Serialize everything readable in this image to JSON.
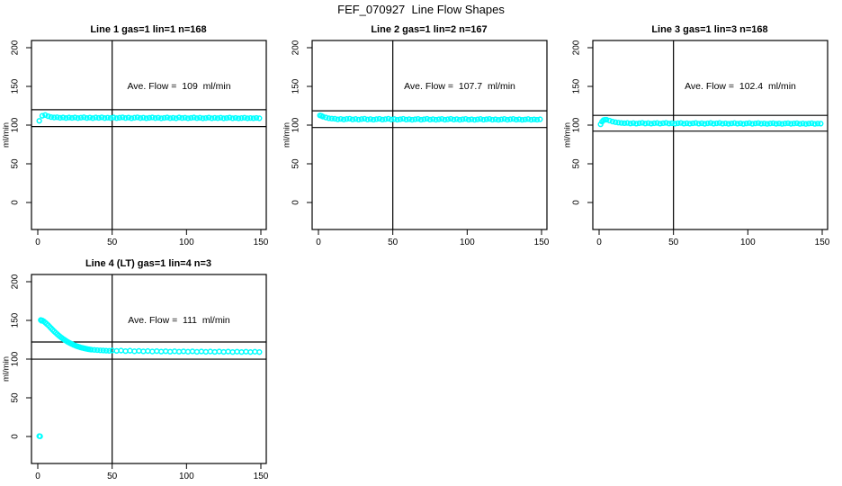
{
  "figure_title": "FEF_070927  Line Flow Shapes",
  "colors": {
    "marker": "#00FFFF",
    "axis": "#000000",
    "background": "#FFFFFF"
  },
  "chart_data": [
    {
      "type": "scatter",
      "title": "Line 1 gas=1 lin=1 n=168",
      "annotation": "Ave. Flow =  109  ml/min",
      "ave_flow": 109,
      "n": 168,
      "ylabel": "ml/min",
      "xticks": [
        0,
        50,
        100,
        150
      ],
      "yticks": [
        0,
        50,
        100,
        150,
        200
      ],
      "xlim": [
        0,
        155
      ],
      "ylim": [
        -35,
        210
      ],
      "vline_x": 50,
      "hlines": [
        119.9,
        98.1
      ],
      "legend": "none",
      "grid": false,
      "points": [
        [
          1,
          105.5
        ],
        [
          3,
          112
        ],
        [
          5,
          113
        ],
        [
          7,
          111.5
        ],
        [
          9,
          110.3
        ],
        [
          11,
          109.8
        ],
        [
          13,
          110.2
        ],
        [
          15,
          109.4
        ],
        [
          17,
          109.9
        ],
        [
          19,
          109.2
        ],
        [
          21,
          109.8
        ],
        [
          23,
          109.3
        ],
        [
          25,
          109.9
        ],
        [
          27,
          109.1
        ],
        [
          29,
          109.6
        ],
        [
          31,
          110.1
        ],
        [
          33,
          109.2
        ],
        [
          35,
          109.7
        ],
        [
          37,
          109.0
        ],
        [
          39,
          109.8
        ],
        [
          41,
          109.3
        ],
        [
          43,
          110.0
        ],
        [
          45,
          109.1
        ],
        [
          47,
          109.6
        ],
        [
          49,
          109.2
        ],
        [
          51,
          109.8
        ],
        [
          53,
          109.0
        ],
        [
          55,
          109.5
        ],
        [
          57,
          110.0
        ],
        [
          59,
          109.2
        ],
        [
          61,
          109.7
        ],
        [
          63,
          108.9
        ],
        [
          65,
          109.5
        ],
        [
          67,
          110.0
        ],
        [
          69,
          109.1
        ],
        [
          71,
          109.6
        ],
        [
          73,
          108.9
        ],
        [
          75,
          109.4
        ],
        [
          77,
          109.9
        ],
        [
          79,
          109.1
        ],
        [
          81,
          109.5
        ],
        [
          83,
          108.8
        ],
        [
          85,
          109.3
        ],
        [
          87,
          109.8
        ],
        [
          89,
          109.0
        ],
        [
          91,
          109.4
        ],
        [
          93,
          108.8
        ],
        [
          95,
          109.9
        ],
        [
          97,
          109.2
        ],
        [
          99,
          109.6
        ],
        [
          101,
          108.9
        ],
        [
          103,
          109.3
        ],
        [
          105,
          109.8
        ],
        [
          107,
          109.0
        ],
        [
          109,
          109.5
        ],
        [
          111,
          108.8
        ],
        [
          113,
          109.2
        ],
        [
          115,
          109.7
        ],
        [
          117,
          108.9
        ],
        [
          119,
          109.4
        ],
        [
          121,
          109.0
        ],
        [
          123,
          109.6
        ],
        [
          125,
          108.8
        ],
        [
          127,
          109.2
        ],
        [
          129,
          109.7
        ],
        [
          131,
          108.9
        ],
        [
          133,
          109.3
        ],
        [
          135,
          108.7
        ],
        [
          137,
          109.1
        ],
        [
          139,
          109.5
        ],
        [
          141,
          108.8
        ],
        [
          143,
          109.2
        ],
        [
          145,
          108.9
        ],
        [
          147,
          109.3
        ],
        [
          149,
          108.8
        ]
      ]
    },
    {
      "type": "scatter",
      "title": "Line 2 gas=1 lin=2 n=167",
      "annotation": "Ave. Flow =  107.7  ml/min",
      "ave_flow": 107.7,
      "n": 167,
      "ylabel": "ml/min",
      "xticks": [
        0,
        50,
        100,
        150
      ],
      "yticks": [
        0,
        50,
        100,
        150,
        200
      ],
      "xlim": [
        0,
        155
      ],
      "ylim": [
        -35,
        210
      ],
      "vline_x": 50,
      "hlines": [
        118.5,
        96.9
      ],
      "legend": "none",
      "grid": false,
      "points": [
        [
          1,
          112.5
        ],
        [
          2,
          112
        ],
        [
          3,
          111
        ],
        [
          5,
          109.8
        ],
        [
          7,
          108.9
        ],
        [
          9,
          108.4
        ],
        [
          11,
          108.2
        ],
        [
          13,
          107.4
        ],
        [
          15,
          108.0
        ],
        [
          17,
          107.2
        ],
        [
          19,
          107.9
        ],
        [
          21,
          108.3
        ],
        [
          23,
          107.3
        ],
        [
          25,
          107.9
        ],
        [
          27,
          107.1
        ],
        [
          29,
          107.8
        ],
        [
          31,
          108.2
        ],
        [
          33,
          107.2
        ],
        [
          35,
          107.8
        ],
        [
          37,
          107.0
        ],
        [
          39,
          107.7
        ],
        [
          41,
          108.1
        ],
        [
          43,
          107.1
        ],
        [
          45,
          107.7
        ],
        [
          47,
          108.2
        ],
        [
          49,
          107.2
        ],
        [
          51,
          107.8
        ],
        [
          53,
          107.0
        ],
        [
          55,
          107.6
        ],
        [
          57,
          108.1
        ],
        [
          59,
          107.1
        ],
        [
          61,
          107.7
        ],
        [
          63,
          106.9
        ],
        [
          65,
          107.5
        ],
        [
          67,
          108.0
        ],
        [
          69,
          107.0
        ],
        [
          71,
          107.6
        ],
        [
          73,
          108.1
        ],
        [
          75,
          107.1
        ],
        [
          77,
          107.7
        ],
        [
          79,
          106.9
        ],
        [
          81,
          107.5
        ],
        [
          83,
          108.0
        ],
        [
          85,
          107.0
        ],
        [
          87,
          107.6
        ],
        [
          89,
          108.1
        ],
        [
          91,
          107.1
        ],
        [
          93,
          107.7
        ],
        [
          95,
          106.9
        ],
        [
          97,
          107.5
        ],
        [
          99,
          108.0
        ],
        [
          101,
          107.0
        ],
        [
          103,
          107.6
        ],
        [
          105,
          106.8
        ],
        [
          107,
          107.4
        ],
        [
          109,
          107.9
        ],
        [
          111,
          107.0
        ],
        [
          113,
          107.6
        ],
        [
          115,
          108.0
        ],
        [
          117,
          107.0
        ],
        [
          119,
          107.5
        ],
        [
          121,
          106.8
        ],
        [
          123,
          107.4
        ],
        [
          125,
          107.9
        ],
        [
          127,
          106.9
        ],
        [
          129,
          107.5
        ],
        [
          131,
          107.9
        ],
        [
          133,
          107.0
        ],
        [
          135,
          107.6
        ],
        [
          137,
          106.8
        ],
        [
          139,
          107.3
        ],
        [
          141,
          107.8
        ],
        [
          143,
          106.9
        ],
        [
          145,
          107.4
        ],
        [
          147,
          107.0
        ],
        [
          149,
          107.5
        ]
      ]
    },
    {
      "type": "scatter",
      "title": "Line 3 gas=1 lin=3 n=168",
      "annotation": "Ave. Flow =  102.4  ml/min",
      "ave_flow": 102.4,
      "n": 168,
      "ylabel": "ml/min",
      "xticks": [
        0,
        50,
        100,
        150
      ],
      "yticks": [
        0,
        50,
        100,
        150,
        200
      ],
      "xlim": [
        0,
        155
      ],
      "ylim": [
        -35,
        210
      ],
      "vline_x": 50,
      "hlines": [
        112.6,
        92.2
      ],
      "legend": "none",
      "grid": false,
      "points": [
        [
          1,
          101
        ],
        [
          2,
          104.5
        ],
        [
          3,
          106.5
        ],
        [
          4,
          107
        ],
        [
          5,
          107
        ],
        [
          7,
          105.8
        ],
        [
          9,
          104.6
        ],
        [
          11,
          103.8
        ],
        [
          13,
          103.2
        ],
        [
          15,
          102.8
        ],
        [
          17,
          102.5
        ],
        [
          19,
          102.8
        ],
        [
          21,
          102.0
        ],
        [
          23,
          102.6
        ],
        [
          25,
          101.9
        ],
        [
          27,
          102.5
        ],
        [
          29,
          102.9
        ],
        [
          31,
          102.0
        ],
        [
          33,
          102.6
        ],
        [
          35,
          101.9
        ],
        [
          37,
          102.4
        ],
        [
          39,
          102.8
        ],
        [
          41,
          101.9
        ],
        [
          43,
          102.5
        ],
        [
          45,
          102.9
        ],
        [
          47,
          102.0
        ],
        [
          49,
          102.5
        ],
        [
          51,
          101.8
        ],
        [
          53,
          102.4
        ],
        [
          55,
          102.8
        ],
        [
          57,
          101.9
        ],
        [
          59,
          102.4
        ],
        [
          61,
          101.8
        ],
        [
          63,
          102.3
        ],
        [
          65,
          102.8
        ],
        [
          67,
          101.9
        ],
        [
          69,
          102.4
        ],
        [
          71,
          101.7
        ],
        [
          73,
          102.3
        ],
        [
          75,
          102.7
        ],
        [
          77,
          101.8
        ],
        [
          79,
          102.3
        ],
        [
          81,
          102.7
        ],
        [
          83,
          101.8
        ],
        [
          85,
          102.3
        ],
        [
          87,
          101.7
        ],
        [
          89,
          102.2
        ],
        [
          91,
          102.6
        ],
        [
          93,
          101.8
        ],
        [
          95,
          102.3
        ],
        [
          97,
          101.6
        ],
        [
          99,
          102.2
        ],
        [
          101,
          102.6
        ],
        [
          103,
          101.7
        ],
        [
          105,
          102.2
        ],
        [
          107,
          102.6
        ],
        [
          109,
          101.8
        ],
        [
          111,
          102.2
        ],
        [
          113,
          101.6
        ],
        [
          115,
          102.1
        ],
        [
          117,
          102.5
        ],
        [
          119,
          101.7
        ],
        [
          121,
          102.2
        ],
        [
          123,
          101.6
        ],
        [
          125,
          102.1
        ],
        [
          127,
          102.5
        ],
        [
          129,
          101.7
        ],
        [
          131,
          102.1
        ],
        [
          133,
          102.5
        ],
        [
          135,
          101.6
        ],
        [
          137,
          102.1
        ],
        [
          139,
          101.5
        ],
        [
          141,
          102.0
        ],
        [
          143,
          102.4
        ],
        [
          145,
          101.6
        ],
        [
          147,
          102.0
        ],
        [
          149,
          101.9
        ]
      ]
    },
    {
      "type": "scatter",
      "title": "Line 4 (LT) gas=1 lin=4 n=3",
      "annotation": "Ave. Flow =  111  ml/min",
      "ave_flow": 111,
      "n": 3,
      "ylabel": "ml/min",
      "xticks": [
        0,
        50,
        100,
        150
      ],
      "yticks": [
        0,
        50,
        100,
        150,
        200
      ],
      "xlim": [
        0,
        155
      ],
      "ylim": [
        -35,
        210
      ],
      "vline_x": 50,
      "hlines": [
        122.1,
        99.9
      ],
      "legend": "none",
      "grid": false,
      "points": [
        [
          1,
          0.5
        ],
        [
          1.6,
          0.2
        ],
        [
          2,
          150.5
        ],
        [
          2.5,
          149.5
        ],
        [
          3,
          150
        ],
        [
          4,
          148.8
        ],
        [
          5,
          147.2
        ],
        [
          6,
          145.5
        ],
        [
          7,
          143.8
        ],
        [
          8,
          141.8
        ],
        [
          9,
          139.8
        ],
        [
          10,
          137.8
        ],
        [
          11,
          135.9
        ],
        [
          12,
          134.1
        ],
        [
          13,
          132.4
        ],
        [
          14,
          130.7
        ],
        [
          15,
          129.1
        ],
        [
          16,
          127.6
        ],
        [
          17,
          126.2
        ],
        [
          18,
          124.9
        ],
        [
          19,
          123.6
        ],
        [
          20,
          122.4
        ],
        [
          21,
          121.3
        ],
        [
          22,
          120.3
        ],
        [
          23,
          119.4
        ],
        [
          24,
          118.5
        ],
        [
          25,
          117.7
        ],
        [
          26,
          116.9
        ],
        [
          27,
          116.2
        ],
        [
          28,
          115.6
        ],
        [
          29,
          115.0
        ],
        [
          30,
          114.5
        ],
        [
          31,
          114.0
        ],
        [
          32,
          113.6
        ],
        [
          33,
          113.2
        ],
        [
          34,
          112.8
        ],
        [
          35,
          112.5
        ],
        [
          36,
          112.2
        ],
        [
          38,
          111.9
        ],
        [
          40,
          111.6
        ],
        [
          42,
          111.3
        ],
        [
          44,
          111.1
        ],
        [
          46,
          110.9
        ],
        [
          48,
          110.7
        ],
        [
          50,
          111.2
        ],
        [
          53,
          110.6
        ],
        [
          56,
          111.0
        ],
        [
          59,
          110.3
        ],
        [
          62,
          110.8
        ],
        [
          65,
          110.1
        ],
        [
          68,
          110.6
        ],
        [
          71,
          110.0
        ],
        [
          74,
          110.4
        ],
        [
          77,
          109.8
        ],
        [
          80,
          110.3
        ],
        [
          83,
          109.7
        ],
        [
          86,
          110.2
        ],
        [
          89,
          109.6
        ],
        [
          92,
          110.1
        ],
        [
          95,
          109.6
        ],
        [
          98,
          110.0
        ],
        [
          101,
          109.5
        ],
        [
          104,
          110.0
        ],
        [
          107,
          109.4
        ],
        [
          110,
          109.9
        ],
        [
          113,
          109.4
        ],
        [
          116,
          109.8
        ],
        [
          119,
          109.3
        ],
        [
          122,
          109.8
        ],
        [
          125,
          109.3
        ],
        [
          128,
          109.7
        ],
        [
          131,
          109.2
        ],
        [
          134,
          109.6
        ],
        [
          137,
          109.2
        ],
        [
          140,
          109.6
        ],
        [
          143,
          109.1
        ],
        [
          146,
          109.5
        ],
        [
          149,
          109.1
        ]
      ]
    }
  ]
}
